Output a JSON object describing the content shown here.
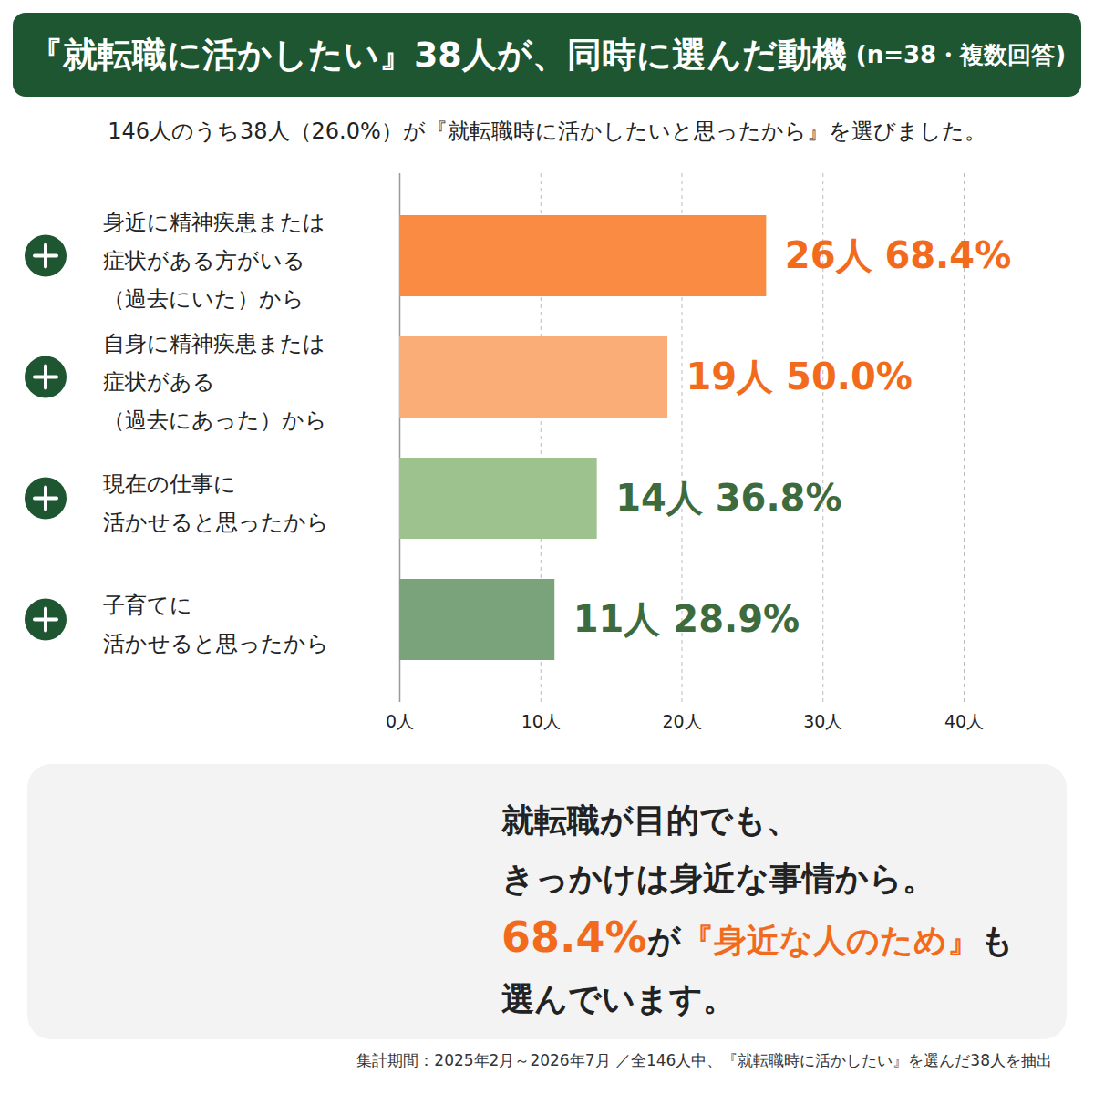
{
  "chart_data": {
    "type": "bar",
    "orientation": "horizontal",
    "title": "『就転職に活かしたい』38人が、同時に選んだ動機",
    "title_note": "(n=38・複数回答)",
    "subtitle": "146人のうち38人（26.0%）が『就転職時に活かしたいと思ったから』を選びました。",
    "categories": [
      "身近に精神疾患または\n症状がある方がいる\n（過去にいた）から",
      "自身に精神疾患または\n症状がある\n（過去にあった）から",
      "現在の仕事に\n活かせると思ったから",
      "子育てに\n活かせると思ったから"
    ],
    "values": [
      26,
      19,
      14,
      11
    ],
    "value_labels": [
      "26人 68.4%",
      "19人 50.0%",
      "14人 36.8%",
      "11人 28.9%"
    ],
    "data_labels": true,
    "colors": [
      "#f98b42",
      "#fbad77",
      "#9dc28e",
      "#7ba37b"
    ],
    "xlim": [
      0,
      40
    ],
    "xticks": [
      {
        "value": 0,
        "label": "0人"
      },
      {
        "value": 10,
        "label": "10人"
      },
      {
        "value": 20,
        "label": "20人"
      },
      {
        "value": 30,
        "label": "30人"
      },
      {
        "value": 40,
        "label": "40人"
      }
    ],
    "grid": true,
    "annotation": [
      [
        "就転職が目的でも、"
      ],
      [
        "きっかけは身近な事情から。"
      ],
      [
        "68.4%",
        "が",
        "『身近な人のため』",
        "も"
      ],
      [
        "選んでいます。"
      ]
    ],
    "caption": "集計期間：2025年2月～2026年7月 ／全146人中、『就転職時に活かしたい』を選んだ38人を抽出"
  }
}
